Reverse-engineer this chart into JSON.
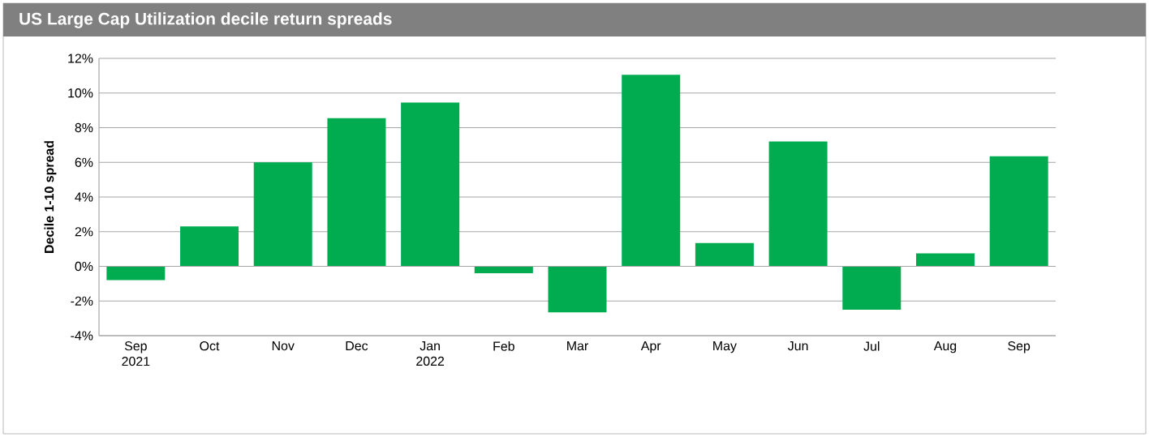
{
  "chart_data": {
    "type": "bar",
    "title": "US Large Cap Utilization decile return spreads",
    "ylabel": "Decile 1-10 spread",
    "categories": [
      "Sep 2021",
      "Oct",
      "Nov",
      "Dec",
      "Jan 2022",
      "Feb",
      "Mar",
      "Apr",
      "May",
      "Jun",
      "Jul",
      "Aug",
      "Sep"
    ],
    "values": [
      -0.8,
      2.3,
      6.0,
      8.55,
      9.45,
      -0.4,
      -2.65,
      11.05,
      1.35,
      7.2,
      -2.5,
      0.75,
      6.35
    ],
    "color": "#00ac4f",
    "ylim": [
      -4,
      12
    ],
    "yticks": [
      {
        "value": -4,
        "label": "-4%"
      },
      {
        "value": -2,
        "label": "-2%"
      },
      {
        "value": 0,
        "label": "0%"
      },
      {
        "value": 2,
        "label": "2%"
      },
      {
        "value": 4,
        "label": "4%"
      },
      {
        "value": 6,
        "label": "6%"
      },
      {
        "value": 8,
        "label": "8%"
      },
      {
        "value": 10,
        "label": "10%"
      },
      {
        "value": 12,
        "label": "12%"
      }
    ],
    "grid": "y"
  }
}
